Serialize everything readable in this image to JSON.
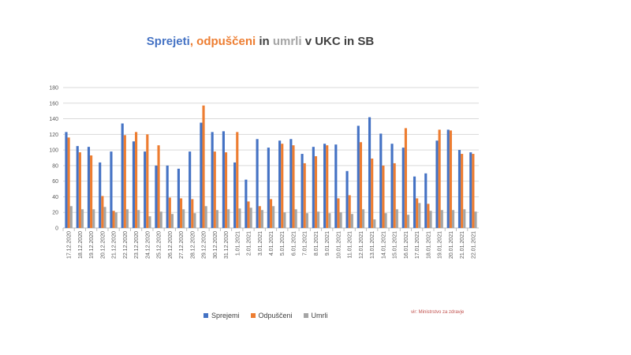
{
  "chart_data": {
    "type": "bar",
    "title_parts": [
      {
        "text": "Sprejeti",
        "color": "#4472c4"
      },
      {
        "text": ", ",
        "color": "#ed7d31"
      },
      {
        "text": "odpuščeni",
        "color": "#ed7d31"
      },
      {
        "text": " in ",
        "color": "#404040"
      },
      {
        "text": "umrli",
        "color": "#a5a5a5"
      },
      {
        "text": " v UKC in SB",
        "color": "#404040"
      }
    ],
    "categories": [
      "17.12.2020",
      "18.12.2020",
      "19.12.2020",
      "20.12.2020",
      "21.12.2020",
      "22.12.2020",
      "23.12.2020",
      "24.12.2020",
      "25.12.2020",
      "26.12.2020",
      "27.12.2020",
      "28.12.2020",
      "29.12.2020",
      "30.12.2020",
      "31.12.2020",
      "1.01.2021",
      "2.01.2021",
      "3.01.2021",
      "4.01.2021",
      "5.01.2021",
      "6.01.2021",
      "7.01.2021",
      "8.01.2021",
      "9.01.2021",
      "10.01.2021",
      "11.01.2021",
      "12.01.2021",
      "13.01.2021",
      "14.01.2021",
      "15.01.2021",
      "16.01.2021",
      "17.01.2021",
      "18.01.2021",
      "19.01.2021",
      "20.01.2021",
      "21.01.2021",
      "22.01.2021"
    ],
    "series": [
      {
        "name": "Sprejemi",
        "color": "#4472c4",
        "values": [
          123,
          105,
          104,
          84,
          98,
          134,
          111,
          98,
          80,
          80,
          76,
          98,
          135,
          123,
          124,
          84,
          62,
          114,
          103,
          112,
          114,
          95,
          104,
          108,
          107,
          73,
          131,
          142,
          121,
          108,
          103,
          66,
          70,
          112,
          126,
          100,
          97
        ]
      },
      {
        "name": "Odpuščeni",
        "color": "#ed7d31",
        "values": [
          116,
          97,
          93,
          41,
          22,
          119,
          123,
          120,
          106,
          39,
          38,
          37,
          157,
          98,
          97,
          123,
          34,
          28,
          37,
          108,
          106,
          83,
          92,
          106,
          38,
          42,
          110,
          89,
          80,
          83,
          128,
          38,
          31,
          126,
          125,
          95,
          95
        ]
      },
      {
        "name": "Umrli",
        "color": "#a5a5a5",
        "values": [
          28,
          24,
          24,
          27,
          20,
          24,
          23,
          15,
          21,
          18,
          24,
          19,
          28,
          23,
          24,
          25,
          26,
          23,
          28,
          20,
          24,
          19,
          21,
          19,
          20,
          18,
          24,
          11,
          19,
          24,
          17,
          32,
          22,
          23,
          23,
          24,
          21
        ]
      }
    ],
    "yticks": [
      0,
      20,
      40,
      60,
      80,
      100,
      120,
      140,
      160,
      180
    ],
    "ylim": [
      0,
      180
    ],
    "grid": true,
    "legend_position": "bottom",
    "source": "vir: Ministrstvo za zdravje"
  }
}
